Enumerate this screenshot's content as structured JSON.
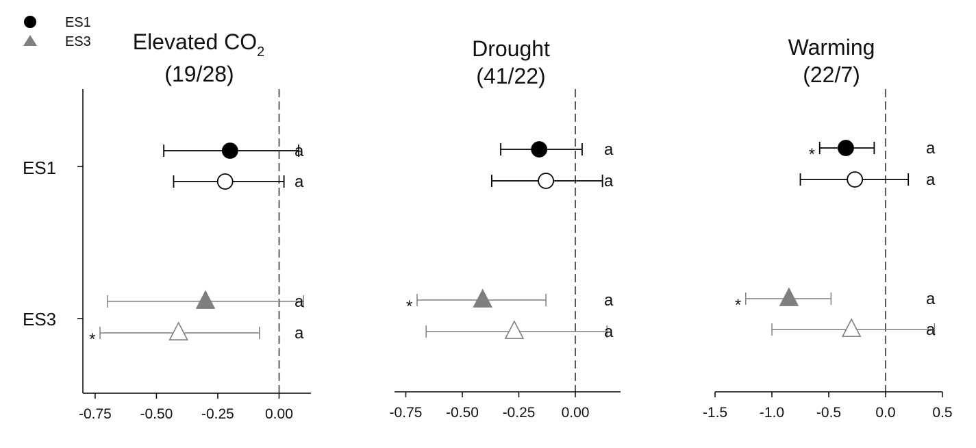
{
  "legend": {
    "items": [
      {
        "label": "ES1",
        "marker": "circle",
        "color": "#000000"
      },
      {
        "label": "ES3",
        "marker": "triangle",
        "color": "#7f7f7f"
      }
    ]
  },
  "colors": {
    "es1": "#000000",
    "es3": "#7f7f7f",
    "axis": "#000000"
  },
  "chart_data": [
    {
      "type": "scatter",
      "title_main": "Elevated CO",
      "title_sub": "2",
      "title_counts": "(19/28)",
      "categories": [
        "ES1",
        "ES3"
      ],
      "xlim": [
        -0.8,
        0.13
      ],
      "xticks": [
        -0.75,
        -0.5,
        -0.25,
        0.0
      ],
      "xtick_labels": [
        "-0.75",
        "-0.50",
        "-0.25",
        "0.00"
      ],
      "zero_line": 0,
      "series": [
        {
          "category": "ES1",
          "marker": "circle",
          "filled": true,
          "mean": -0.2,
          "lo": -0.47,
          "hi": 0.08,
          "letter": "a",
          "star": false
        },
        {
          "category": "ES1",
          "marker": "circle",
          "filled": false,
          "mean": -0.22,
          "lo": -0.43,
          "hi": 0.02,
          "letter": "a",
          "star": false
        },
        {
          "category": "ES3",
          "marker": "triangle",
          "filled": true,
          "mean": -0.3,
          "lo": -0.7,
          "hi": 0.1,
          "letter": "a",
          "star": false
        },
        {
          "category": "ES3",
          "marker": "triangle",
          "filled": false,
          "mean": -0.41,
          "lo": -0.73,
          "hi": -0.08,
          "letter": "a",
          "star": true
        }
      ]
    },
    {
      "type": "scatter",
      "title_main": "Drought",
      "title_sub": "",
      "title_counts": "(41/22)",
      "categories": [
        "ES1",
        "ES3"
      ],
      "xlim": [
        -0.8,
        0.2
      ],
      "xticks": [
        -0.75,
        -0.5,
        -0.25,
        0.0
      ],
      "xtick_labels": [
        "-0.75",
        "-0.50",
        "-0.25",
        "0.00"
      ],
      "zero_line": 0,
      "series": [
        {
          "category": "ES1",
          "marker": "circle",
          "filled": true,
          "mean": -0.16,
          "lo": -0.33,
          "hi": 0.03,
          "letter": "a",
          "star": false
        },
        {
          "category": "ES1",
          "marker": "circle",
          "filled": false,
          "mean": -0.13,
          "lo": -0.37,
          "hi": 0.12,
          "letter": "a",
          "star": false
        },
        {
          "category": "ES3",
          "marker": "triangle",
          "filled": true,
          "mean": -0.41,
          "lo": -0.7,
          "hi": -0.13,
          "letter": "a",
          "star": true
        },
        {
          "category": "ES3",
          "marker": "triangle",
          "filled": false,
          "mean": -0.27,
          "lo": -0.66,
          "hi": 0.14,
          "letter": "a",
          "star": false
        }
      ]
    },
    {
      "type": "scatter",
      "title_main": "Warming",
      "title_sub": "",
      "title_counts": "(22/7)",
      "categories": [
        "ES1",
        "ES3"
      ],
      "xlim": [
        -1.5,
        0.5
      ],
      "xticks": [
        -1.5,
        -1.0,
        -0.5,
        0.0,
        0.5
      ],
      "xtick_labels": [
        "-1.5",
        "-1.0",
        "-0.5",
        "0.0",
        "0.5"
      ],
      "zero_line": 0,
      "series": [
        {
          "category": "ES1",
          "marker": "circle",
          "filled": true,
          "mean": -0.35,
          "lo": -0.58,
          "hi": -0.1,
          "letter": "a",
          "star": true
        },
        {
          "category": "ES1",
          "marker": "circle",
          "filled": false,
          "mean": -0.27,
          "lo": -0.75,
          "hi": 0.2,
          "letter": "a",
          "star": false
        },
        {
          "category": "ES3",
          "marker": "triangle",
          "filled": true,
          "mean": -0.85,
          "lo": -1.23,
          "hi": -0.48,
          "letter": "a",
          "star": true
        },
        {
          "category": "ES3",
          "marker": "triangle",
          "filled": false,
          "mean": -0.3,
          "lo": -1.0,
          "hi": 0.43,
          "letter": "a",
          "star": false
        }
      ]
    }
  ]
}
